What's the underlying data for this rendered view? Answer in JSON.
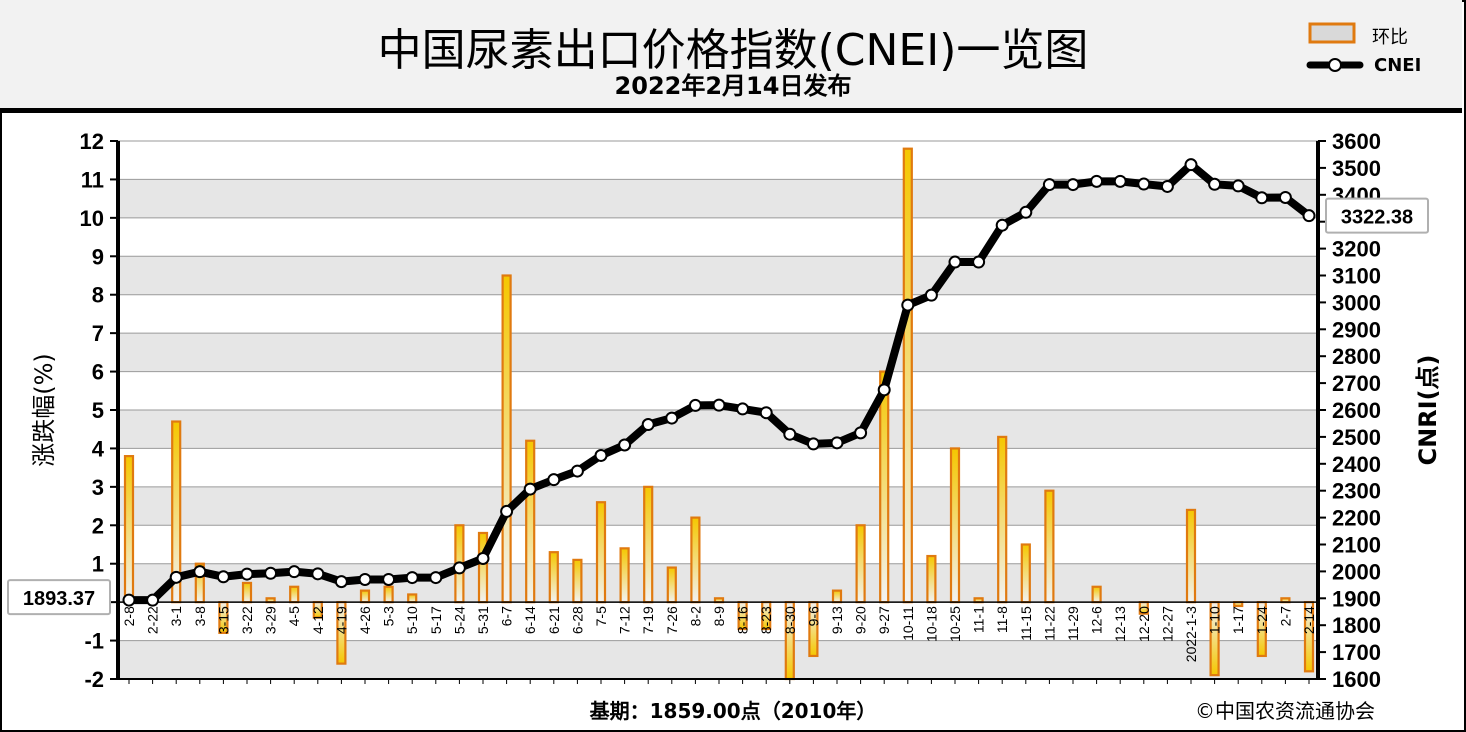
{
  "header": {
    "title": "中国尿素出口价格指数(CNEI)一览图",
    "subtitle": "2022年2月14日发布"
  },
  "legend": {
    "bar_label": "环比",
    "line_label": "CNEI"
  },
  "footer": {
    "base_period": "基期：1859.00点（2010年）",
    "copyright": "©中国农资流通协会"
  },
  "colors": {
    "bar_border": "#e07a10",
    "bar_fill_top": "#f5c700",
    "bar_fill_bottom": "#f2f2f2",
    "line": "#000000",
    "marker_fill": "#ffffff",
    "plot_band_light": "#ffffff",
    "plot_band_dark": "#e6e6e6"
  },
  "chart_data": {
    "type": "bar+line",
    "categories": [
      "2-8",
      "2-22",
      "3-1",
      "3-8",
      "3-15",
      "3-22",
      "3-29",
      "4-5",
      "4-12",
      "4-19",
      "4-26",
      "5-3",
      "5-10",
      "5-17",
      "5-24",
      "5-31",
      "6-7",
      "6-14",
      "6-21",
      "6-28",
      "7-5",
      "7-12",
      "7-19",
      "7-26",
      "8-2",
      "8-9",
      "8-16",
      "8-23",
      "8-30",
      "9-6",
      "9-13",
      "9-20",
      "9-27",
      "10-11",
      "10-18",
      "10-25",
      "11-1",
      "11-8",
      "11-15",
      "11-22",
      "11-29",
      "12-6",
      "12-13",
      "12-20",
      "12-27",
      "2022-1-3",
      "1-10",
      "1-17",
      "1-24",
      "2-7",
      "2-14"
    ],
    "series": [
      {
        "name": "环比",
        "axis": "left",
        "values": [
          3.8,
          0,
          4.7,
          1.0,
          -0.8,
          0.5,
          0.1,
          0.4,
          -0.4,
          -1.6,
          0.3,
          0.4,
          0.2,
          0,
          2.0,
          1.8,
          8.5,
          4.2,
          1.3,
          1.1,
          2.6,
          1.4,
          3.0,
          0.9,
          2.2,
          0.1,
          -0.7,
          -0.7,
          -2.0,
          -1.4,
          0.3,
          2.0,
          6.0,
          11.8,
          1.2,
          4.0,
          0.1,
          4.3,
          1.5,
          2.9,
          0,
          0.4,
          0,
          -0.3,
          0,
          2.4,
          -1.9,
          -0.1,
          -1.4,
          0.1,
          -1.8
        ]
      },
      {
        "name": "CNEI",
        "axis": "right",
        "values": [
          1893.37,
          1893,
          1978,
          1999,
          1980,
          1990,
          1993,
          1999,
          1991,
          1962,
          1970,
          1970,
          1977,
          1977,
          2013,
          2048,
          2223,
          2306,
          2341,
          2373,
          2431,
          2470,
          2546,
          2570,
          2617,
          2618,
          2604,
          2590,
          2510,
          2474,
          2478,
          2515,
          2675,
          2990,
          3027,
          3150,
          3150,
          3287,
          3335,
          3438,
          3438,
          3450,
          3450,
          3440,
          3431,
          3512,
          3439,
          3433,
          3389,
          3390,
          3322.38
        ]
      }
    ],
    "y_left": {
      "label": "涨跌幅(%)",
      "min": -2,
      "max": 12,
      "step": 1
    },
    "y_right": {
      "label": "CNRI(点)",
      "min": 1600,
      "max": 3600,
      "step": 100
    },
    "first_value_label": "1893.37",
    "last_value_label": "3322.38",
    "grid": true
  }
}
